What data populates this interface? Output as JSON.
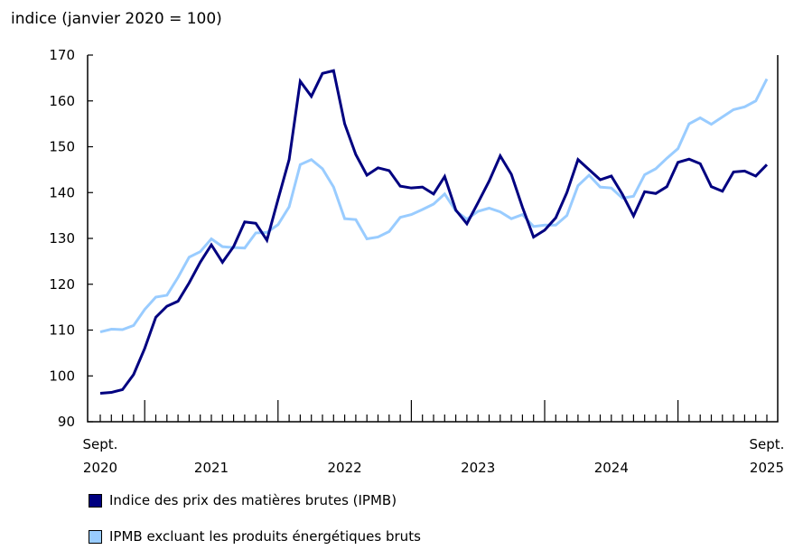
{
  "chart_data": {
    "type": "line",
    "ylabel": "indice (janvier 2020 = 100)",
    "ylim": [
      90,
      170
    ],
    "yticks": [
      90,
      100,
      110,
      120,
      130,
      140,
      150,
      160,
      170
    ],
    "x_start": "2020-09",
    "x_end": "2025-09",
    "frequency": "monthly",
    "xtick_labels": [
      {
        "month": "2020-09",
        "line1": "Sept.",
        "line2": "2020"
      },
      {
        "month": "2021-07",
        "line1": "",
        "line2": "2021"
      },
      {
        "month": "2022-07",
        "line1": "",
        "line2": "2022"
      },
      {
        "month": "2023-07",
        "line1": "",
        "line2": "2023"
      },
      {
        "month": "2024-07",
        "line1": "",
        "line2": "2024"
      },
      {
        "month": "2025-09",
        "line1": "Sept.",
        "line2": "2025"
      }
    ],
    "grid": false,
    "legend_position": "bottom",
    "series": [
      {
        "name": "Indice des prix des matières brutes (IPMB)",
        "color": "#000080",
        "values": [
          96.2,
          96.4,
          97.0,
          100.3,
          106.0,
          112.8,
          115.2,
          116.3,
          120.3,
          124.8,
          128.6,
          124.8,
          128.2,
          133.6,
          133.3,
          129.6,
          138.5,
          147.2,
          164.3,
          161.0,
          166.0,
          166.6,
          155.0,
          148.3,
          143.8,
          145.4,
          144.8,
          141.4,
          141.0,
          141.2,
          139.7,
          143.5,
          136.2,
          133.2,
          137.8,
          142.5,
          148.0,
          144.0,
          136.8,
          130.3,
          131.8,
          134.5,
          140.0,
          147.2,
          145.0,
          142.8,
          143.6,
          139.6,
          134.9,
          140.2,
          139.8,
          141.3,
          146.6,
          147.3,
          146.3,
          141.3,
          140.3,
          144.5,
          144.7,
          143.6,
          146.1
        ]
      },
      {
        "name": "IPMB excluant les produits énergétiques bruts",
        "color": "#99ccff",
        "values": [
          109.6,
          110.2,
          110.1,
          111.0,
          114.5,
          117.2,
          117.6,
          121.5,
          125.9,
          127.1,
          129.9,
          128.2,
          128.0,
          127.9,
          131.2,
          131.3,
          133.0,
          136.9,
          146.1,
          147.2,
          145.2,
          141.2,
          134.3,
          134.1,
          129.9,
          130.3,
          131.5,
          134.6,
          135.2,
          136.3,
          137.5,
          139.7,
          136.0,
          134.2,
          135.9,
          136.6,
          135.8,
          134.3,
          135.2,
          132.6,
          132.9,
          132.9,
          135.0,
          141.5,
          143.8,
          141.2,
          141.0,
          138.8,
          139.2,
          143.9,
          145.2,
          147.5,
          149.6,
          155.0,
          156.3,
          154.9,
          156.5,
          158.1,
          158.7,
          160.0,
          164.8
        ]
      }
    ]
  }
}
